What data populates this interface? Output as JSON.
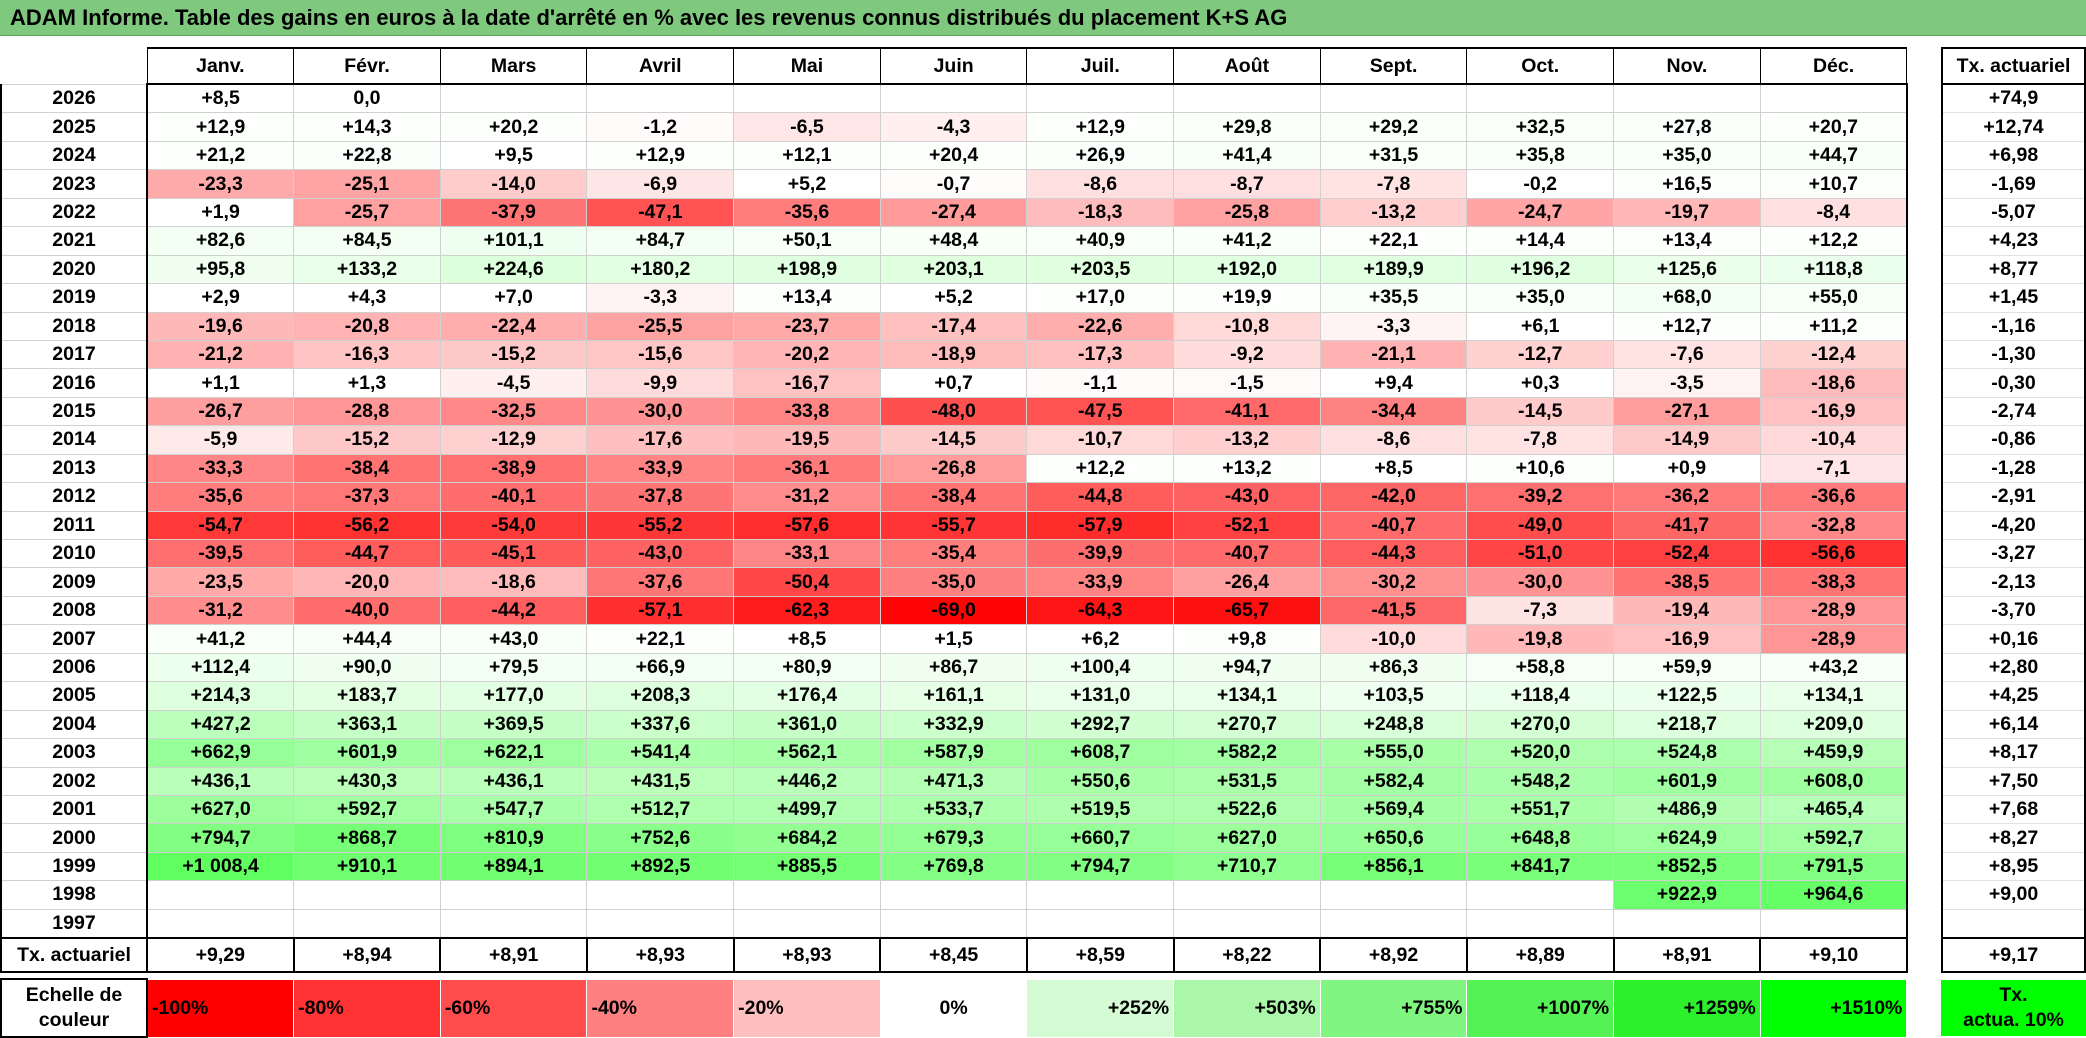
{
  "title": "ADAM Informe. Table des gains en euros à la date d'arrêté en % avec les revenus connus distribués du placement K+S AG",
  "months": [
    "Janv.",
    "Févr.",
    "Mars",
    "Avril",
    "Mai",
    "Juin",
    "Juil.",
    "Août",
    "Sept.",
    "Oct.",
    "Nov.",
    "Déc."
  ],
  "rate_header": "Tx. actuariel",
  "rows": [
    {
      "year": "2026",
      "values": [
        "+8,5",
        "0,0",
        "",
        "",
        "",
        "",
        "",
        "",
        "",
        "",
        "",
        ""
      ],
      "rate": "+74,9"
    },
    {
      "year": "2025",
      "values": [
        "+12,9",
        "+14,3",
        "+20,2",
        "-1,2",
        "-6,5",
        "-4,3",
        "+12,9",
        "+29,8",
        "+29,2",
        "+32,5",
        "+27,8",
        "+20,7"
      ],
      "rate": "+12,74"
    },
    {
      "year": "2024",
      "values": [
        "+21,2",
        "+22,8",
        "+9,5",
        "+12,9",
        "+12,1",
        "+20,4",
        "+26,9",
        "+41,4",
        "+31,5",
        "+35,8",
        "+35,0",
        "+44,7"
      ],
      "rate": "+6,98"
    },
    {
      "year": "2023",
      "values": [
        "-23,3",
        "-25,1",
        "-14,0",
        "-6,9",
        "+5,2",
        "-0,7",
        "-8,6",
        "-8,7",
        "-7,8",
        "-0,2",
        "+16,5",
        "+10,7"
      ],
      "rate": "-1,69"
    },
    {
      "year": "2022",
      "values": [
        "+1,9",
        "-25,7",
        "-37,9",
        "-47,1",
        "-35,6",
        "-27,4",
        "-18,3",
        "-25,8",
        "-13,2",
        "-24,7",
        "-19,7",
        "-8,4"
      ],
      "rate": "-5,07"
    },
    {
      "year": "2021",
      "values": [
        "+82,6",
        "+84,5",
        "+101,1",
        "+84,7",
        "+50,1",
        "+48,4",
        "+40,9",
        "+41,2",
        "+22,1",
        "+14,4",
        "+13,4",
        "+12,2"
      ],
      "rate": "+4,23"
    },
    {
      "year": "2020",
      "values": [
        "+95,8",
        "+133,2",
        "+224,6",
        "+180,2",
        "+198,9",
        "+203,1",
        "+203,5",
        "+192,0",
        "+189,9",
        "+196,2",
        "+125,6",
        "+118,8"
      ],
      "rate": "+8,77"
    },
    {
      "year": "2019",
      "values": [
        "+2,9",
        "+4,3",
        "+7,0",
        "-3,3",
        "+13,4",
        "+5,2",
        "+17,0",
        "+19,9",
        "+35,5",
        "+35,0",
        "+68,0",
        "+55,0"
      ],
      "rate": "+1,45"
    },
    {
      "year": "2018",
      "values": [
        "-19,6",
        "-20,8",
        "-22,4",
        "-25,5",
        "-23,7",
        "-17,4",
        "-22,6",
        "-10,8",
        "-3,3",
        "+6,1",
        "+12,7",
        "+11,2"
      ],
      "rate": "-1,16"
    },
    {
      "year": "2017",
      "values": [
        "-21,2",
        "-16,3",
        "-15,2",
        "-15,6",
        "-20,2",
        "-18,9",
        "-17,3",
        "-9,2",
        "-21,1",
        "-12,7",
        "-7,6",
        "-12,4"
      ],
      "rate": "-1,30"
    },
    {
      "year": "2016",
      "values": [
        "+1,1",
        "+1,3",
        "-4,5",
        "-9,9",
        "-16,7",
        "+0,7",
        "-1,1",
        "-1,5",
        "+9,4",
        "+0,3",
        "-3,5",
        "-18,6"
      ],
      "rate": "-0,30"
    },
    {
      "year": "2015",
      "values": [
        "-26,7",
        "-28,8",
        "-32,5",
        "-30,0",
        "-33,8",
        "-48,0",
        "-47,5",
        "-41,1",
        "-34,4",
        "-14,5",
        "-27,1",
        "-16,9"
      ],
      "rate": "-2,74"
    },
    {
      "year": "2014",
      "values": [
        "-5,9",
        "-15,2",
        "-12,9",
        "-17,6",
        "-19,5",
        "-14,5",
        "-10,7",
        "-13,2",
        "-8,6",
        "-7,8",
        "-14,9",
        "-10,4"
      ],
      "rate": "-0,86"
    },
    {
      "year": "2013",
      "values": [
        "-33,3",
        "-38,4",
        "-38,9",
        "-33,9",
        "-36,1",
        "-26,8",
        "+12,2",
        "+13,2",
        "+8,5",
        "+10,6",
        "+0,9",
        "-7,1"
      ],
      "rate": "-1,28"
    },
    {
      "year": "2012",
      "values": [
        "-35,6",
        "-37,3",
        "-40,1",
        "-37,8",
        "-31,2",
        "-38,4",
        "-44,8",
        "-43,0",
        "-42,0",
        "-39,2",
        "-36,2",
        "-36,6"
      ],
      "rate": "-2,91"
    },
    {
      "year": "2011",
      "values": [
        "-54,7",
        "-56,2",
        "-54,0",
        "-55,2",
        "-57,6",
        "-55,7",
        "-57,9",
        "-52,1",
        "-40,7",
        "-49,0",
        "-41,7",
        "-32,8"
      ],
      "rate": "-4,20"
    },
    {
      "year": "2010",
      "values": [
        "-39,5",
        "-44,7",
        "-45,1",
        "-43,0",
        "-33,1",
        "-35,4",
        "-39,9",
        "-40,7",
        "-44,3",
        "-51,0",
        "-52,4",
        "-56,6"
      ],
      "rate": "-3,27"
    },
    {
      "year": "2009",
      "values": [
        "-23,5",
        "-20,0",
        "-18,6",
        "-37,6",
        "-50,4",
        "-35,0",
        "-33,9",
        "-26,4",
        "-30,2",
        "-30,0",
        "-38,5",
        "-38,3"
      ],
      "rate": "-2,13"
    },
    {
      "year": "2008",
      "values": [
        "-31,2",
        "-40,0",
        "-44,2",
        "-57,1",
        "-62,3",
        "-69,0",
        "-64,3",
        "-65,7",
        "-41,5",
        "-7,3",
        "-19,4",
        "-28,9"
      ],
      "rate": "-3,70"
    },
    {
      "year": "2007",
      "values": [
        "+41,2",
        "+44,4",
        "+43,0",
        "+22,1",
        "+8,5",
        "+1,5",
        "+6,2",
        "+9,8",
        "-10,0",
        "-19,8",
        "-16,9",
        "-28,9"
      ],
      "rate": "+0,16"
    },
    {
      "year": "2006",
      "values": [
        "+112,4",
        "+90,0",
        "+79,5",
        "+66,9",
        "+80,9",
        "+86,7",
        "+100,4",
        "+94,7",
        "+86,3",
        "+58,8",
        "+59,9",
        "+43,2"
      ],
      "rate": "+2,80"
    },
    {
      "year": "2005",
      "values": [
        "+214,3",
        "+183,7",
        "+177,0",
        "+208,3",
        "+176,4",
        "+161,1",
        "+131,0",
        "+134,1",
        "+103,5",
        "+118,4",
        "+122,5",
        "+134,1"
      ],
      "rate": "+4,25"
    },
    {
      "year": "2004",
      "values": [
        "+427,2",
        "+363,1",
        "+369,5",
        "+337,6",
        "+361,0",
        "+332,9",
        "+292,7",
        "+270,7",
        "+248,8",
        "+270,0",
        "+218,7",
        "+209,0"
      ],
      "rate": "+6,14"
    },
    {
      "year": "2003",
      "values": [
        "+662,9",
        "+601,9",
        "+622,1",
        "+541,4",
        "+562,1",
        "+587,9",
        "+608,7",
        "+582,2",
        "+555,0",
        "+520,0",
        "+524,8",
        "+459,9"
      ],
      "rate": "+8,17"
    },
    {
      "year": "2002",
      "values": [
        "+436,1",
        "+430,3",
        "+436,1",
        "+431,5",
        "+446,2",
        "+471,3",
        "+550,6",
        "+531,5",
        "+582,4",
        "+548,2",
        "+601,9",
        "+608,0"
      ],
      "rate": "+7,50"
    },
    {
      "year": "2001",
      "values": [
        "+627,0",
        "+592,7",
        "+547,7",
        "+512,7",
        "+499,7",
        "+533,7",
        "+519,5",
        "+522,6",
        "+569,4",
        "+551,7",
        "+486,9",
        "+465,4"
      ],
      "rate": "+7,68"
    },
    {
      "year": "2000",
      "values": [
        "+794,7",
        "+868,7",
        "+810,9",
        "+752,6",
        "+684,2",
        "+679,3",
        "+660,7",
        "+627,0",
        "+650,6",
        "+648,8",
        "+624,9",
        "+592,7"
      ],
      "rate": "+8,27"
    },
    {
      "year": "1999",
      "values": [
        "+1 008,4",
        "+910,1",
        "+894,1",
        "+892,5",
        "+885,5",
        "+769,8",
        "+794,7",
        "+710,7",
        "+856,1",
        "+841,7",
        "+852,5",
        "+791,5"
      ],
      "rate": "+8,95"
    },
    {
      "year": "1998",
      "values": [
        "",
        "",
        "",
        "",
        "",
        "",
        "",
        "",
        "",
        "",
        "+922,9",
        "+964,6"
      ],
      "rate": "+9,00"
    },
    {
      "year": "1997",
      "values": [
        "",
        "",
        "",
        "",
        "",
        "",
        "",
        "",
        "",
        "",
        "",
        ""
      ],
      "rate": ""
    }
  ],
  "footer": {
    "label": "Tx. actuariel",
    "values": [
      "+9,29",
      "+8,94",
      "+8,91",
      "+8,93",
      "+8,93",
      "+8,45",
      "+8,59",
      "+8,22",
      "+8,92",
      "+8,89",
      "+8,91",
      "+9,10"
    ],
    "rate": "+9,17"
  },
  "scale": {
    "label": "Echelle de couleur",
    "items": [
      {
        "text": "-100%",
        "color": "#ff0000"
      },
      {
        "text": "-80%",
        "color": "#ff3333"
      },
      {
        "text": "-60%",
        "color": "#ff4d4d"
      },
      {
        "text": "-40%",
        "color": "#ff8080"
      },
      {
        "text": "-20%",
        "color": "#ffbfbf"
      },
      {
        "text": "0%",
        "color": "#ffffff"
      },
      {
        "text": "+252%",
        "color": "#d5fbd5"
      },
      {
        "text": "+503%",
        "color": "#aaf7aa"
      },
      {
        "text": "+755%",
        "color": "#80f580"
      },
      {
        "text": "+1007%",
        "color": "#55f255"
      },
      {
        "text": "+1259%",
        "color": "#2bf02b"
      },
      {
        "text": "+1510%",
        "color": "#00ff00"
      }
    ],
    "rate_label_line1": "Tx.",
    "rate_label_line2": "actua. 10%",
    "rate_color": "#00ff00"
  },
  "colors": {
    "title_bg": "#7fc97f",
    "negative_full": "#ff0000",
    "positive_full": "#00ff00",
    "neutral": "#ffffff"
  }
}
